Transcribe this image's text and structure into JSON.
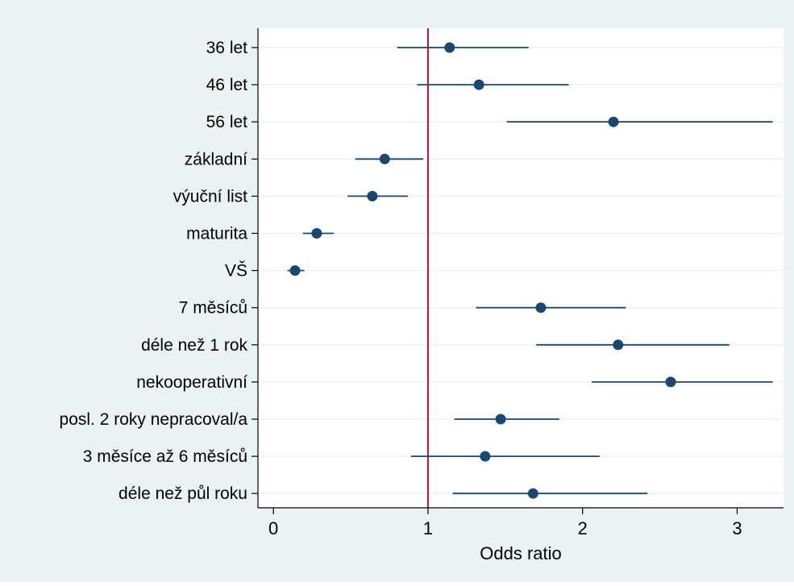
{
  "chart_data": {
    "type": "scatter",
    "subtype": "forest-plot",
    "title": "",
    "xlabel": "Odds ratio",
    "ylabel": "",
    "xlim": [
      -0.1,
      3.3
    ],
    "xticks": [
      0,
      1,
      2,
      3
    ],
    "reference_line": {
      "x": 1,
      "color": "#b5162d"
    },
    "grid": "horizontal",
    "colors": {
      "marker": "#1a476f",
      "outer_background": "#eaf2f3",
      "plot_background": "#ffffff",
      "grid": "#eaf2f3"
    },
    "categories": [
      "36 let",
      "46 let",
      "56 let",
      "základní",
      "výuční list",
      "maturita",
      "VŠ",
      "7 měsíců",
      "déle než 1 rok",
      "nekooperativní",
      "posl. 2 roky nepracoval/a",
      "3 měsíce až 6 měsíců",
      "déle než půl roku"
    ],
    "series": [
      {
        "estimate": [
          1.14,
          1.33,
          2.2,
          0.72,
          0.64,
          0.28,
          0.14,
          1.73,
          2.23,
          2.57,
          1.47,
          1.37,
          1.68
        ],
        "ci_low": [
          0.8,
          0.93,
          1.51,
          0.53,
          0.48,
          0.19,
          0.09,
          1.31,
          1.7,
          2.06,
          1.17,
          0.89,
          1.16
        ],
        "ci_high": [
          1.65,
          1.91,
          3.23,
          0.97,
          0.87,
          0.39,
          0.2,
          2.28,
          2.95,
          3.23,
          1.85,
          2.11,
          2.42
        ]
      }
    ]
  }
}
